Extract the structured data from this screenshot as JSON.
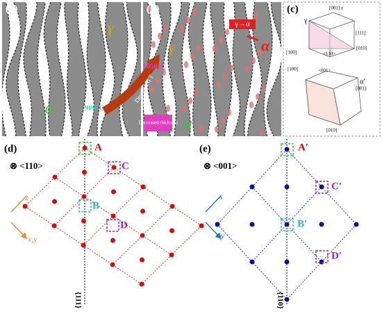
{
  "panels": {
    "a": {
      "label": "(a)",
      "gamma": "γ",
      "alpha": "α"
    },
    "b": {
      "label": "(b)",
      "gamma": "γ",
      "alpha": "α",
      "transform": "γ→α",
      "alpha_new": "α",
      "temp_high": "1050°C",
      "decreased_t": "Decreased T",
      "temp_low": "900°C",
      "decreased_thickness": "Decreased thickness"
    },
    "c": {
      "label": "(c)",
      "gamma": "γ",
      "z_top": "[001] z",
      "plane": "[111]",
      "y_top": "[010]",
      "x_top": "[100]",
      "dir_top": "<110>",
      "alpha_prime": "α′",
      "z_bottom": "[001]",
      "x_bottom": "[100]",
      "y_bottom": "[010]",
      "dir_bottom": "<001>"
    },
    "d": {
      "label": "(d)",
      "view": "⊗ <110>",
      "A": "A",
      "B": "B",
      "C": "C",
      "D": "D",
      "z": "z",
      "xy": "x,y",
      "plane": "{111}"
    },
    "e": {
      "label": "(e)",
      "view": "⊗ <001>",
      "A": "A′",
      "B": "B′",
      "C": "C′",
      "D": "D′",
      "x": "x",
      "y": "y",
      "plane": "{110}"
    }
  }
}
